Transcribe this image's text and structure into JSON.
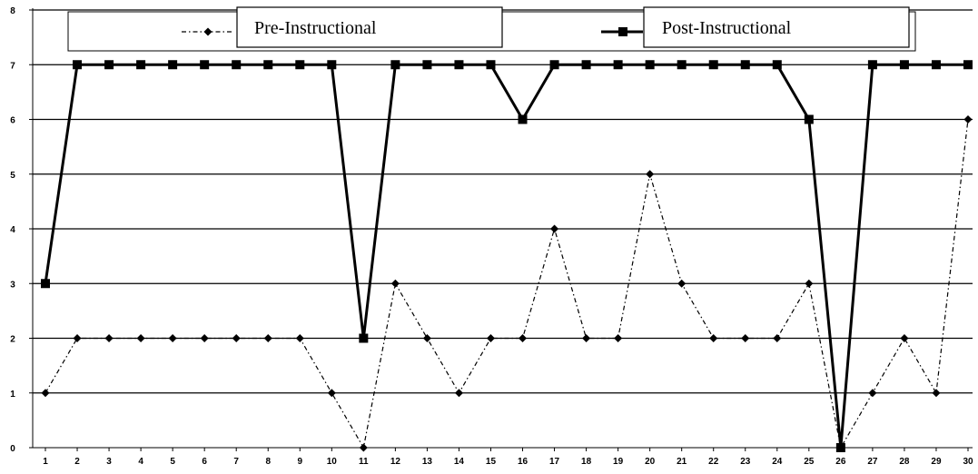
{
  "chart_data": {
    "type": "line",
    "title": "",
    "xlabel": "",
    "ylabel": "",
    "x": [
      1,
      2,
      3,
      4,
      5,
      6,
      7,
      8,
      9,
      10,
      11,
      12,
      13,
      14,
      15,
      16,
      17,
      18,
      19,
      20,
      21,
      22,
      23,
      24,
      25,
      26,
      27,
      28,
      29,
      30
    ],
    "ylim": [
      0,
      8
    ],
    "yticks": [
      0,
      1,
      2,
      3,
      4,
      5,
      6,
      7,
      8
    ],
    "grid": true,
    "legend_position": "top",
    "series": [
      {
        "name": "Pre-Instructional",
        "marker": "diamond",
        "line_style": "dash-dot",
        "values": [
          1,
          2,
          2,
          2,
          2,
          2,
          2,
          2,
          2,
          1,
          0,
          3,
          2,
          1,
          2,
          2,
          4,
          2,
          2,
          5,
          3,
          2,
          2,
          2,
          3,
          0,
          1,
          2,
          1,
          6
        ]
      },
      {
        "name": "Post-Instructional",
        "marker": "square",
        "line_style": "solid-thick",
        "values": [
          3,
          7,
          7,
          7,
          7,
          7,
          7,
          7,
          7,
          7,
          2,
          7,
          7,
          7,
          7,
          6,
          7,
          7,
          7,
          7,
          7,
          7,
          7,
          7,
          6,
          0,
          7,
          7,
          7,
          7
        ]
      }
    ]
  }
}
